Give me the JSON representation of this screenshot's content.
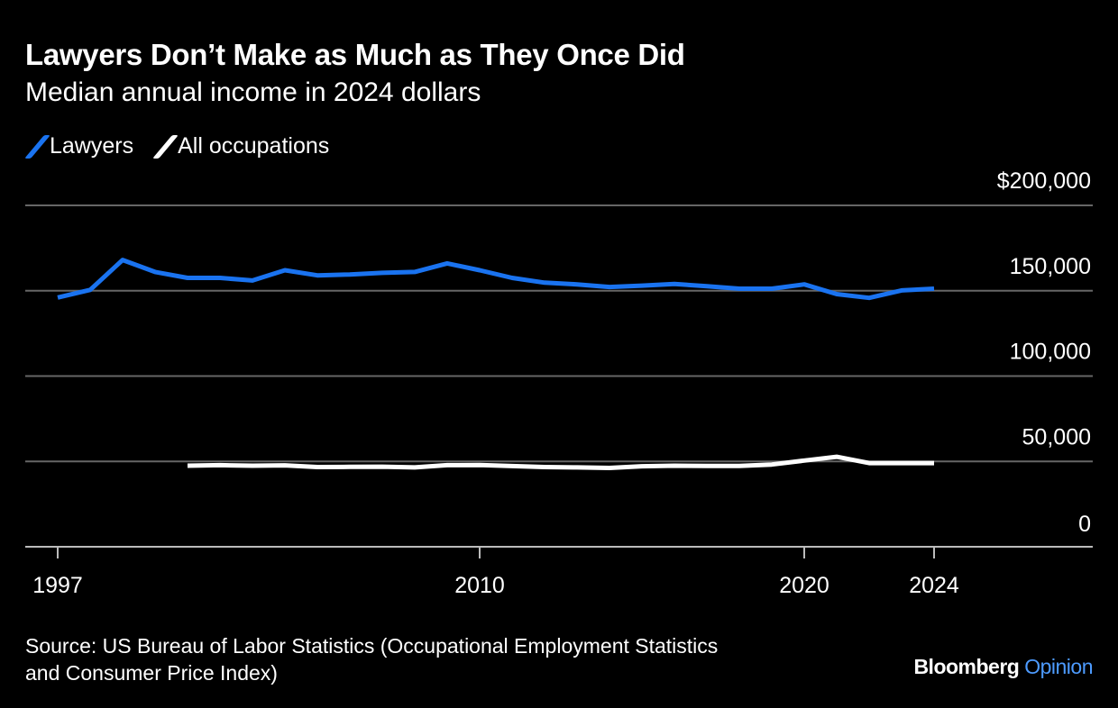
{
  "chart_data": {
    "type": "line",
    "title": "Lawyers Don’t Make as Much as They Once Did",
    "subtitle": "Median annual income in 2024 dollars",
    "xlabel": "",
    "ylabel": "",
    "ylim": [
      0,
      200000
    ],
    "xlim": [
      1997,
      2024
    ],
    "grid": true,
    "legend_placement": "top-left",
    "y_ticks": [
      {
        "value": 200000,
        "label": "$200,000"
      },
      {
        "value": 150000,
        "label": "150,000"
      },
      {
        "value": 100000,
        "label": "100,000"
      },
      {
        "value": 50000,
        "label": "50,000"
      },
      {
        "value": 0,
        "label": "0"
      }
    ],
    "x_ticks": [
      {
        "value": 1997,
        "label": "1997"
      },
      {
        "value": 2010,
        "label": "2010"
      },
      {
        "value": 2020,
        "label": "2020"
      },
      {
        "value": 2024,
        "label": "2024"
      }
    ],
    "series": [
      {
        "name": "Lawyers",
        "color": "#1a73f0",
        "x": [
          1997,
          1998,
          1999,
          2000,
          2001,
          2002,
          2003,
          2004,
          2005,
          2006,
          2007,
          2008,
          2009,
          2010,
          2011,
          2012,
          2013,
          2014,
          2015,
          2016,
          2017,
          2018,
          2019,
          2020,
          2021,
          2022,
          2023,
          2024
        ],
        "values": [
          146000,
          150500,
          168000,
          161000,
          157500,
          157500,
          156000,
          162000,
          159000,
          159500,
          160500,
          161000,
          166000,
          162000,
          157500,
          154700,
          153700,
          152200,
          153000,
          154000,
          152600,
          151200,
          151200,
          153700,
          148000,
          145800,
          150200,
          151200
        ]
      },
      {
        "name": "All occupations",
        "color": "#ffffff",
        "x": [
          2001,
          2002,
          2003,
          2004,
          2005,
          2006,
          2007,
          2008,
          2009,
          2010,
          2011,
          2012,
          2013,
          2014,
          2015,
          2016,
          2017,
          2018,
          2019,
          2020,
          2021,
          2022,
          2023,
          2024
        ],
        "values": [
          47500,
          47800,
          47500,
          47700,
          46700,
          46800,
          46900,
          46500,
          47800,
          47900,
          47300,
          46700,
          46500,
          46200,
          47200,
          47500,
          47400,
          47400,
          48200,
          50500,
          52700,
          49000,
          49000,
          49000
        ]
      }
    ]
  },
  "footer": {
    "source_line1": "Source: US Bureau of Labor Statistics (Occupational Employment Statistics",
    "source_line2": "and Consumer Price Index)",
    "brand_name": "Bloomberg",
    "brand_suffix": "Opinion"
  }
}
